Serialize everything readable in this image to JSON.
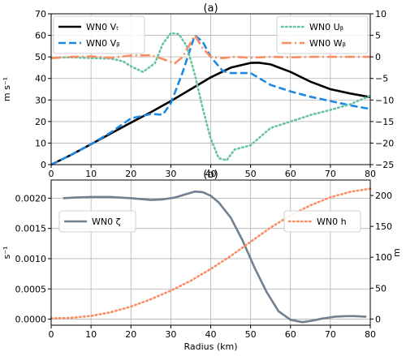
{
  "chart_data": [
    {
      "type": "line",
      "title": "(a)",
      "xlim": [
        0,
        80
      ],
      "ylim_left": [
        0,
        70
      ],
      "ylim_right": [
        -25,
        10
      ],
      "ylabel_left": "m s⁻¹",
      "xticks": [
        "0",
        "10",
        "20",
        "30",
        "40",
        "50",
        "60",
        "70",
        "80"
      ],
      "yticks_left": [
        "0",
        "10",
        "20",
        "30",
        "40",
        "50",
        "60",
        "70"
      ],
      "yticks_right": [
        "−25",
        "−20",
        "−15",
        "−10",
        "−5",
        "0",
        "5",
        "10"
      ],
      "grid": true,
      "legend_left": [
        "WN0 Vₜ",
        "WN0 Vᵦ"
      ],
      "legend_right": [
        "WN0 Uᵦ",
        "WN0 Wᵦ"
      ],
      "series": [
        {
          "name": "WN0 Vₜ",
          "axis": "left",
          "color": "#000000",
          "style": "solid",
          "x": [
            0,
            5,
            10,
            15,
            20,
            25,
            30,
            35,
            40,
            45,
            50,
            52,
            55,
            60,
            65,
            70,
            75,
            80
          ],
          "values": [
            0,
            4.5,
            9.5,
            14.5,
            19.5,
            24.3,
            29.5,
            35,
            40.5,
            45,
            47.2,
            47.3,
            46.5,
            43,
            38.5,
            35,
            33,
            31.3
          ]
        },
        {
          "name": "WN0 Vᵦ",
          "axis": "left",
          "color": "#1e88e5",
          "style": "dashed",
          "x": [
            0,
            5,
            10,
            15,
            20,
            25,
            28,
            30,
            33,
            36,
            38,
            40,
            43,
            45,
            50,
            55,
            60,
            65,
            70,
            75,
            80
          ],
          "values": [
            0,
            4.5,
            9.5,
            15,
            21.5,
            23.5,
            23.2,
            28.5,
            43,
            60,
            57,
            50,
            43.5,
            42.5,
            42.5,
            37,
            34,
            31.5,
            29.5,
            27.5,
            25.8
          ]
        },
        {
          "name": "WN0 Uᵦ",
          "axis": "right",
          "color": "#66c2a5",
          "style": "dotted",
          "x": [
            0,
            5,
            10,
            15,
            18,
            20,
            23,
            26,
            28,
            30,
            32,
            34,
            36,
            38,
            40,
            42,
            44,
            46,
            50,
            55,
            60,
            65,
            70,
            75,
            80
          ],
          "values": [
            -0.2,
            -0.1,
            -0.3,
            -0.4,
            -1,
            -2.2,
            -3.5,
            -1.5,
            3,
            5.5,
            5.3,
            2.5,
            -4,
            -12,
            -19,
            -23.5,
            -24,
            -21.5,
            -20.5,
            -16.5,
            -15,
            -13.5,
            -12.3,
            -11,
            -9
          ]
        },
        {
          "name": "WN0 Wᵦ",
          "axis": "right",
          "color": "#fc8d62",
          "style": "dashdot",
          "x": [
            0,
            5,
            10,
            15,
            20,
            25,
            28,
            31,
            33,
            36,
            38,
            40,
            43,
            46,
            50,
            55,
            60,
            65,
            70,
            75,
            80
          ],
          "values": [
            -0.3,
            0,
            0.1,
            -0.2,
            0.3,
            0.4,
            -0.5,
            -1.5,
            0,
            5,
            2,
            0,
            -0.3,
            0,
            -0.2,
            0,
            -0.1,
            0,
            0,
            0,
            0
          ]
        }
      ]
    },
    {
      "type": "line",
      "title": "(b)",
      "xlabel": "Radius (km)",
      "xlim": [
        0,
        80
      ],
      "ylim_left": [
        -0.0001,
        0.0023
      ],
      "ylim_right": [
        -10,
        225
      ],
      "ylabel_left": "s⁻¹",
      "ylabel_right": "m",
      "xticks": [
        "0",
        "10",
        "20",
        "30",
        "40",
        "50",
        "60",
        "70",
        "80"
      ],
      "yticks_left": [
        "0.0000",
        "0.0005",
        "0.0010",
        "0.0015",
        "0.0020"
      ],
      "yticks_right": [
        "0",
        "50",
        "100",
        "150",
        "200"
      ],
      "grid": true,
      "legend_left": [
        "WN0 ζ"
      ],
      "legend_right": [
        "WN0 h"
      ],
      "series": [
        {
          "name": "WN0 ζ",
          "axis": "left",
          "color": "#708090",
          "style": "solid",
          "x": [
            3,
            6,
            10,
            15,
            20,
            25,
            28,
            31,
            33,
            36,
            38,
            40,
            42,
            45,
            48,
            51,
            54,
            57,
            60,
            63,
            65,
            68,
            71,
            74,
            76,
            79
          ],
          "values": [
            0.002,
            0.00201,
            0.00202,
            0.00202,
            0.002,
            0.00197,
            0.00198,
            0.00201,
            0.00205,
            0.00211,
            0.0021,
            0.00204,
            0.00193,
            0.00168,
            0.0013,
            0.00085,
            0.00045,
            0.00013,
            -1e-05,
            -5e-05,
            -3e-05,
            1e-05,
            4e-05,
            5e-05,
            5e-05,
            4e-05
          ]
        },
        {
          "name": "WN0 h",
          "axis": "right",
          "color": "#fc8d62",
          "style": "dotted",
          "x": [
            0,
            5,
            10,
            15,
            20,
            25,
            30,
            35,
            40,
            45,
            50,
            55,
            60,
            65,
            70,
            75,
            80
          ],
          "values": [
            1,
            2,
            5,
            11,
            20,
            32,
            46,
            62,
            81,
            102,
            125,
            148,
            168,
            184,
            197,
            206,
            211
          ]
        }
      ]
    }
  ]
}
